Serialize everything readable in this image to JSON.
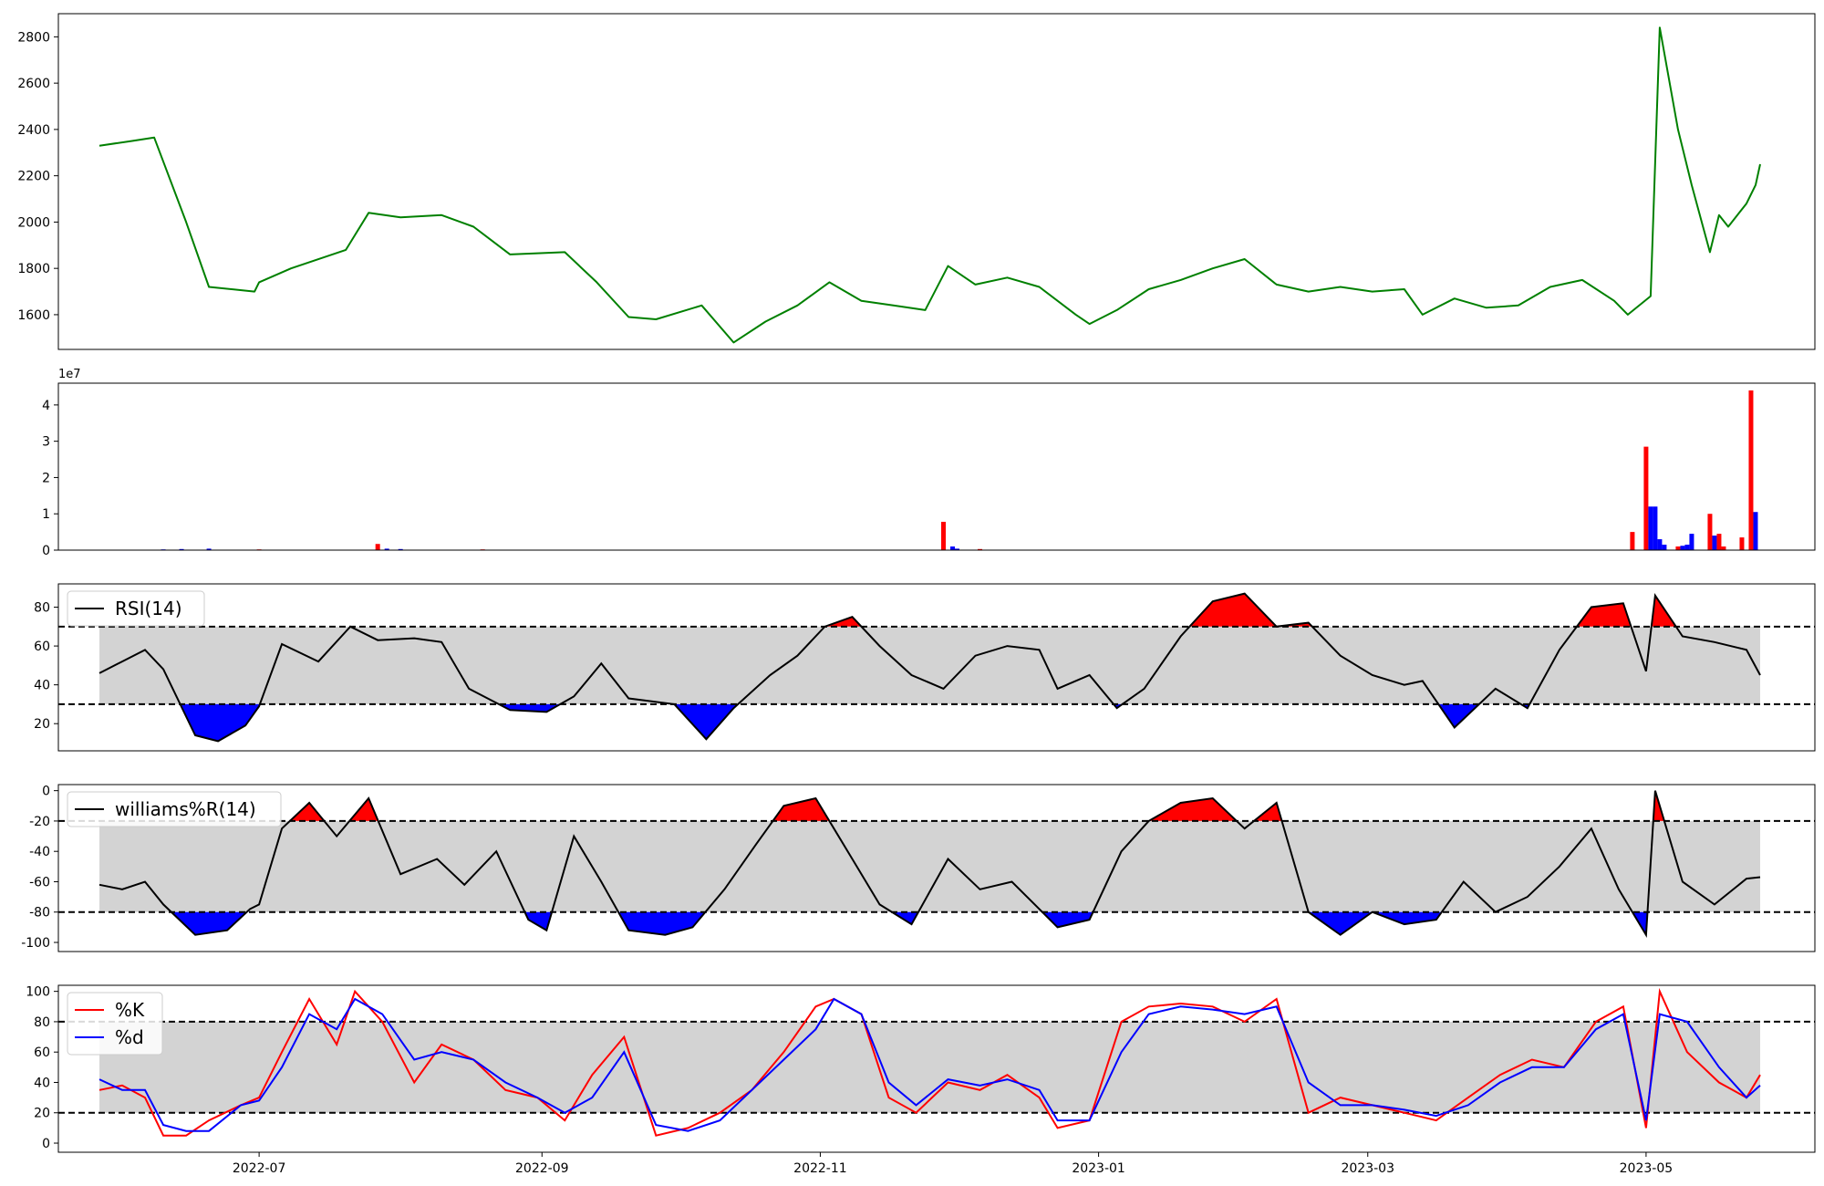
{
  "chart_data": [
    {
      "type": "line",
      "panel": "price",
      "color": "#008000",
      "ylim": [
        1450,
        2900
      ],
      "yticks": [
        1600,
        1800,
        2000,
        2200,
        2400,
        2600,
        2800
      ],
      "x": [
        "2022-05-27",
        "2022-06-03",
        "2022-06-08",
        "2022-06-15",
        "2022-06-20",
        "2022-06-30",
        "2022-07-01",
        "2022-07-08",
        "2022-07-20",
        "2022-07-25",
        "2022-08-01",
        "2022-08-10",
        "2022-08-17",
        "2022-08-25",
        "2022-09-06",
        "2022-09-13",
        "2022-09-20",
        "2022-09-26",
        "2022-10-06",
        "2022-10-13",
        "2022-10-20",
        "2022-10-27",
        "2022-11-03",
        "2022-11-10",
        "2022-11-17",
        "2022-11-24",
        "2022-11-29",
        "2022-12-05",
        "2022-12-12",
        "2022-12-19",
        "2022-12-27",
        "2022-12-30",
        "2023-01-05",
        "2023-01-12",
        "2023-01-19",
        "2023-01-26",
        "2023-02-02",
        "2023-02-09",
        "2023-02-16",
        "2023-02-23",
        "2023-03-02",
        "2023-03-09",
        "2023-03-13",
        "2023-03-20",
        "2023-03-27",
        "2023-04-03",
        "2023-04-10",
        "2023-04-17",
        "2023-04-24",
        "2023-04-27",
        "2023-05-02",
        "2023-05-04",
        "2023-05-08",
        "2023-05-11",
        "2023-05-15",
        "2023-05-17",
        "2023-05-19",
        "2023-05-23",
        "2023-05-25",
        "2023-05-26"
      ],
      "values": [
        2330,
        2350,
        2365,
        2000,
        1720,
        1700,
        1740,
        1800,
        1880,
        2040,
        2020,
        2030,
        1980,
        1860,
        1870,
        1740,
        1590,
        1580,
        1640,
        1480,
        1570,
        1640,
        1740,
        1660,
        1640,
        1620,
        1810,
        1730,
        1760,
        1720,
        1600,
        1560,
        1620,
        1710,
        1750,
        1800,
        1840,
        1730,
        1700,
        1720,
        1700,
        1710,
        1600,
        1670,
        1630,
        1640,
        1720,
        1750,
        1660,
        1600,
        1680,
        2840,
        2400,
        2160,
        1870,
        2030,
        1980,
        2080,
        2160,
        2250
      ]
    },
    {
      "type": "bar",
      "panel": "volume",
      "scale_label": "1e7",
      "ylim": [
        0,
        4.6
      ],
      "yticks": [
        0,
        1,
        2,
        3,
        4
      ],
      "up_color": "#ff0000",
      "down_color": "#0000ff",
      "bars": [
        {
          "date": "2022-06-10",
          "value": 0.02,
          "dir": "down"
        },
        {
          "date": "2022-06-14",
          "value": 0.03,
          "dir": "down"
        },
        {
          "date": "2022-06-20",
          "value": 0.04,
          "dir": "down"
        },
        {
          "date": "2022-07-01",
          "value": 0.02,
          "dir": "up"
        },
        {
          "date": "2022-07-27",
          "value": 0.17,
          "dir": "up"
        },
        {
          "date": "2022-07-29",
          "value": 0.04,
          "dir": "down"
        },
        {
          "date": "2022-08-01",
          "value": 0.03,
          "dir": "down"
        },
        {
          "date": "2022-08-19",
          "value": 0.02,
          "dir": "up"
        },
        {
          "date": "2022-11-28",
          "value": 0.78,
          "dir": "up"
        },
        {
          "date": "2022-11-30",
          "value": 0.1,
          "dir": "down"
        },
        {
          "date": "2022-12-01",
          "value": 0.04,
          "dir": "down"
        },
        {
          "date": "2022-12-06",
          "value": 0.03,
          "dir": "up"
        },
        {
          "date": "2023-04-28",
          "value": 0.5,
          "dir": "up"
        },
        {
          "date": "2023-05-01",
          "value": 2.85,
          "dir": "up"
        },
        {
          "date": "2023-05-02",
          "value": 1.2,
          "dir": "down"
        },
        {
          "date": "2023-05-03",
          "value": 1.2,
          "dir": "down"
        },
        {
          "date": "2023-05-04",
          "value": 0.3,
          "dir": "down"
        },
        {
          "date": "2023-05-05",
          "value": 0.15,
          "dir": "down"
        },
        {
          "date": "2023-05-08",
          "value": 0.1,
          "dir": "up"
        },
        {
          "date": "2023-05-09",
          "value": 0.12,
          "dir": "down"
        },
        {
          "date": "2023-05-10",
          "value": 0.15,
          "dir": "down"
        },
        {
          "date": "2023-05-11",
          "value": 0.45,
          "dir": "down"
        },
        {
          "date": "2023-05-15",
          "value": 1.0,
          "dir": "up"
        },
        {
          "date": "2023-05-16",
          "value": 0.4,
          "dir": "down"
        },
        {
          "date": "2023-05-17",
          "value": 0.45,
          "dir": "up"
        },
        {
          "date": "2023-05-18",
          "value": 0.1,
          "dir": "up"
        },
        {
          "date": "2023-05-22",
          "value": 0.35,
          "dir": "up"
        },
        {
          "date": "2023-05-24",
          "value": 4.4,
          "dir": "up"
        },
        {
          "date": "2023-05-25",
          "value": 1.05,
          "dir": "down"
        }
      ]
    },
    {
      "type": "line",
      "panel": "rsi",
      "legend": [
        "RSI(14)"
      ],
      "color": "#000000",
      "band": [
        30,
        70
      ],
      "ylim": [
        6,
        92
      ],
      "yticks": [
        20,
        40,
        60,
        80
      ],
      "x": [
        "2022-05-27",
        "2022-06-01",
        "2022-06-06",
        "2022-06-10",
        "2022-06-17",
        "2022-06-22",
        "2022-06-28",
        "2022-07-01",
        "2022-07-06",
        "2022-07-14",
        "2022-07-21",
        "2022-07-27",
        "2022-08-04",
        "2022-08-10",
        "2022-08-16",
        "2022-08-25",
        "2022-09-02",
        "2022-09-08",
        "2022-09-14",
        "2022-09-20",
        "2022-09-30",
        "2022-10-07",
        "2022-10-13",
        "2022-10-21",
        "2022-10-27",
        "2022-11-02",
        "2022-11-08",
        "2022-11-14",
        "2022-11-21",
        "2022-11-28",
        "2022-12-05",
        "2022-12-12",
        "2022-12-19",
        "2022-12-23",
        "2022-12-30",
        "2023-01-05",
        "2023-01-11",
        "2023-01-19",
        "2023-01-26",
        "2023-02-02",
        "2023-02-09",
        "2023-02-16",
        "2023-02-23",
        "2023-03-02",
        "2023-03-09",
        "2023-03-13",
        "2023-03-20",
        "2023-03-29",
        "2023-04-05",
        "2023-04-12",
        "2023-04-19",
        "2023-04-26",
        "2023-05-01",
        "2023-05-03",
        "2023-05-09",
        "2023-05-16",
        "2023-05-23",
        "2023-05-26"
      ],
      "values": [
        46,
        52,
        58,
        48,
        14,
        11,
        19,
        29,
        61,
        52,
        70,
        63,
        64,
        62,
        38,
        27,
        26,
        34,
        51,
        33,
        30,
        12,
        28,
        45,
        55,
        70,
        75,
        60,
        45,
        38,
        55,
        60,
        58,
        38,
        45,
        28,
        38,
        65,
        83,
        87,
        70,
        72,
        55,
        45,
        40,
        42,
        18,
        38,
        28,
        58,
        80,
        82,
        47,
        86,
        65,
        62,
        58,
        45
      ]
    },
    {
      "type": "line",
      "panel": "williams",
      "legend": [
        "williams%R(14)"
      ],
      "color": "#000000",
      "band": [
        -80,
        -20
      ],
      "ylim": [
        -106,
        4
      ],
      "yticks": [
        0,
        -20,
        -40,
        -60,
        -80,
        -100
      ],
      "x": [
        "2022-05-27",
        "2022-06-01",
        "2022-06-06",
        "2022-06-10",
        "2022-06-17",
        "2022-06-24",
        "2022-06-29",
        "2022-07-01",
        "2022-07-06",
        "2022-07-12",
        "2022-07-18",
        "2022-07-25",
        "2022-08-01",
        "2022-08-09",
        "2022-08-15",
        "2022-08-22",
        "2022-08-29",
        "2022-09-02",
        "2022-09-08",
        "2022-09-14",
        "2022-09-20",
        "2022-09-28",
        "2022-10-04",
        "2022-10-11",
        "2022-10-18",
        "2022-10-24",
        "2022-10-31",
        "2022-11-04",
        "2022-11-08",
        "2022-11-14",
        "2022-11-21",
        "2022-11-29",
        "2022-12-06",
        "2022-12-13",
        "2022-12-19",
        "2022-12-23",
        "2022-12-30",
        "2023-01-06",
        "2023-01-12",
        "2023-01-19",
        "2023-01-26",
        "2023-02-02",
        "2023-02-09",
        "2023-02-16",
        "2023-02-23",
        "2023-03-02",
        "2023-03-09",
        "2023-03-16",
        "2023-03-22",
        "2023-03-29",
        "2023-04-05",
        "2023-04-12",
        "2023-04-19",
        "2023-04-25",
        "2023-05-01",
        "2023-05-03",
        "2023-05-09",
        "2023-05-16",
        "2023-05-23",
        "2023-05-26"
      ],
      "values": [
        -62,
        -65,
        -60,
        -75,
        -95,
        -92,
        -78,
        -75,
        -25,
        -8,
        -30,
        -5,
        -55,
        -45,
        -62,
        -40,
        -85,
        -92,
        -30,
        -60,
        -92,
        -95,
        -90,
        -65,
        -35,
        -10,
        -5,
        -25,
        -45,
        -75,
        -88,
        -45,
        -65,
        -60,
        -78,
        -90,
        -85,
        -40,
        -20,
        -8,
        -5,
        -25,
        -8,
        -80,
        -95,
        -80,
        -88,
        -85,
        -60,
        -80,
        -70,
        -50,
        -25,
        -65,
        -95,
        0,
        -60,
        -75,
        -58,
        -57
      ]
    },
    {
      "type": "line",
      "panel": "stochastic",
      "legend": [
        "%K",
        "%d"
      ],
      "band": [
        20,
        80
      ],
      "ylim": [
        -6,
        104
      ],
      "yticks": [
        0,
        20,
        40,
        60,
        80,
        100
      ],
      "xlim": [
        "2022-05-18",
        "2023-06-07"
      ],
      "xticks": [
        "2022-07-01",
        "2022-09-01",
        "2022-11-01",
        "2023-01-01",
        "2023-03-01",
        "2023-05-01"
      ],
      "xticklabels": [
        "2022-07",
        "2022-09",
        "2022-11",
        "2023-01",
        "2023-03",
        "2023-05"
      ],
      "x": [
        "2022-05-27",
        "2022-06-01",
        "2022-06-06",
        "2022-06-10",
        "2022-06-15",
        "2022-06-20",
        "2022-06-27",
        "2022-07-01",
        "2022-07-06",
        "2022-07-12",
        "2022-07-18",
        "2022-07-22",
        "2022-07-28",
        "2022-08-04",
        "2022-08-10",
        "2022-08-17",
        "2022-08-24",
        "2022-08-31",
        "2022-09-06",
        "2022-09-12",
        "2022-09-19",
        "2022-09-26",
        "2022-10-03",
        "2022-10-10",
        "2022-10-17",
        "2022-10-24",
        "2022-10-31",
        "2022-11-04",
        "2022-11-10",
        "2022-11-16",
        "2022-11-22",
        "2022-11-29",
        "2022-12-06",
        "2022-12-12",
        "2022-12-19",
        "2022-12-23",
        "2022-12-30",
        "2023-01-06",
        "2023-01-12",
        "2023-01-19",
        "2023-01-26",
        "2023-02-02",
        "2023-02-09",
        "2023-02-16",
        "2023-02-23",
        "2023-03-02",
        "2023-03-09",
        "2023-03-16",
        "2023-03-23",
        "2023-03-30",
        "2023-04-06",
        "2023-04-13",
        "2023-04-20",
        "2023-04-26",
        "2023-05-01",
        "2023-05-04",
        "2023-05-10",
        "2023-05-17",
        "2023-05-23",
        "2023-05-26"
      ],
      "series": [
        {
          "name": "%K",
          "color": "#ff0000",
          "values": [
            35,
            38,
            30,
            5,
            5,
            15,
            25,
            30,
            60,
            95,
            65,
            100,
            80,
            40,
            65,
            55,
            35,
            30,
            15,
            45,
            70,
            5,
            10,
            20,
            35,
            60,
            90,
            95,
            85,
            30,
            20,
            40,
            35,
            45,
            30,
            10,
            15,
            80,
            90,
            92,
            90,
            80,
            95,
            20,
            30,
            25,
            20,
            15,
            30,
            45,
            55,
            50,
            80,
            90,
            10,
            100,
            60,
            40,
            30,
            45
          ]
        },
        {
          "name": "%d",
          "color": "#0000ff",
          "values": [
            42,
            35,
            35,
            12,
            8,
            8,
            25,
            28,
            50,
            85,
            75,
            95,
            85,
            55,
            60,
            55,
            40,
            30,
            20,
            30,
            60,
            12,
            8,
            15,
            35,
            55,
            75,
            95,
            85,
            40,
            25,
            42,
            38,
            42,
            35,
            15,
            15,
            60,
            85,
            90,
            88,
            85,
            90,
            40,
            25,
            25,
            22,
            18,
            25,
            40,
            50,
            50,
            75,
            85,
            15,
            85,
            80,
            50,
            30,
            38
          ]
        }
      ]
    }
  ]
}
